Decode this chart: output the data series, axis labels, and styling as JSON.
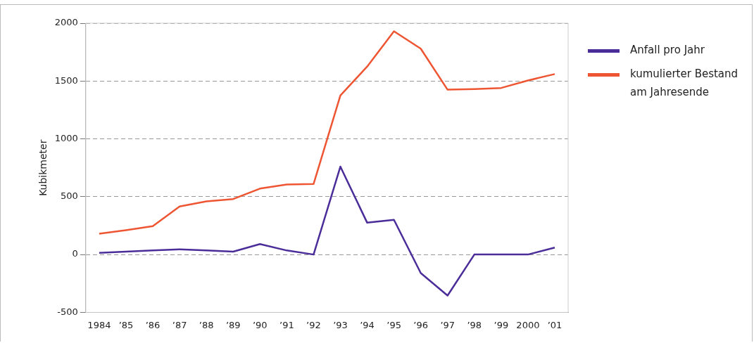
{
  "chart_data": {
    "type": "line",
    "ylabel": "Kubikmeter",
    "categories": [
      "1984",
      "’85",
      "’86",
      "’87",
      "’88",
      "’89",
      "’90",
      "’91",
      "’92",
      "’93",
      "’94",
      "’95",
      "’96",
      "’97",
      "’98",
      "’99",
      "2000",
      "’01"
    ],
    "series": [
      {
        "name": "Anfall pro Jahr",
        "color": "#4b2d9a",
        "values": [
          15,
          25,
          35,
          45,
          35,
          25,
          90,
          35,
          0,
          760,
          275,
          300,
          -160,
          -355,
          0,
          0,
          0,
          60
        ]
      },
      {
        "name": "kumulierter Bestand am Jahresende",
        "color": "#ee5533",
        "values": [
          180,
          210,
          245,
          415,
          460,
          480,
          570,
          605,
          610,
          1375,
          1625,
          1930,
          1780,
          1425,
          1430,
          1440,
          1505,
          1560
        ]
      }
    ],
    "ylim": [
      -500,
      2000
    ],
    "yticks": [
      -500,
      0,
      500,
      1000,
      1500,
      2000
    ],
    "grid": "y",
    "legend": "right",
    "line_style": "solid",
    "marker": "none"
  }
}
